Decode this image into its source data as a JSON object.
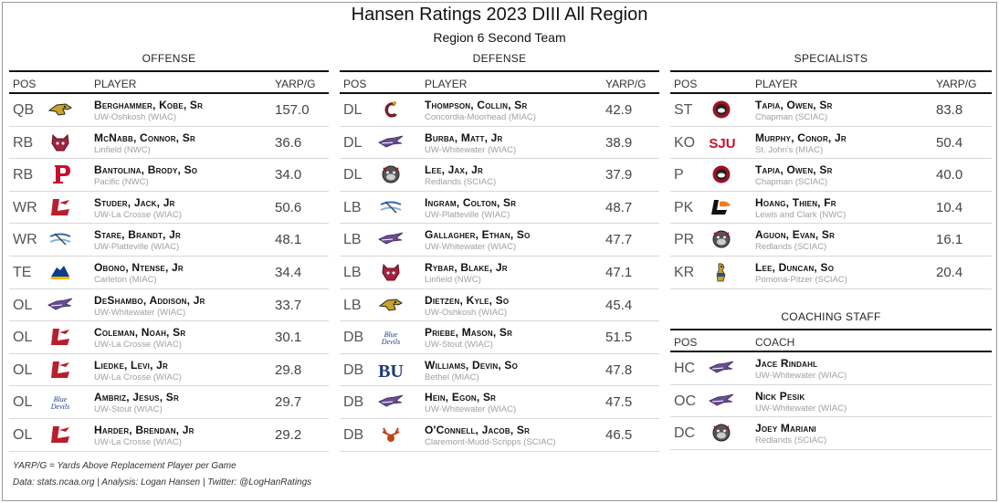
{
  "header": {
    "title": "Hansen Ratings 2023 DIII All Region",
    "subtitle": "Region 6 Second Team"
  },
  "columns": {
    "pos": "POS",
    "player": "PLAYER",
    "stat": "YARP/G",
    "coach": "COACH"
  },
  "offense": {
    "title": "OFFENSE",
    "rows": [
      {
        "pos": "QB",
        "name": "Berghammer, Kobe, Sr",
        "team": "UW-Oshkosh (WIAC)",
        "value": "157.0",
        "logo": "titan-icon"
      },
      {
        "pos": "RB",
        "name": "McNabb, Connor, Sr",
        "team": "Linfield (NWC)",
        "value": "36.6",
        "logo": "wildcat-icon"
      },
      {
        "pos": "RB",
        "name": "Bantolina, Brody, So",
        "team": "Pacific (NWC)",
        "value": "34.0",
        "logo": "p-letter-icon"
      },
      {
        "pos": "WR",
        "name": "Studer, Jack, Jr",
        "team": "UW-La Crosse (WIAC)",
        "value": "50.6",
        "logo": "eagle-l-icon"
      },
      {
        "pos": "WR",
        "name": "Stare, Brandt, Jr",
        "team": "UW-Platteville (WIAC)",
        "value": "48.1",
        "logo": "pioneer-pick-icon"
      },
      {
        "pos": "TE",
        "name": "Obono, Ntense, Jr",
        "team": "Carleton (MIAC)",
        "value": "34.4",
        "logo": "knight-icon"
      },
      {
        "pos": "OL",
        "name": "DeShambo, Addison, Jr",
        "team": "UW-Whitewater (WIAC)",
        "value": "33.7",
        "logo": "warhawk-icon"
      },
      {
        "pos": "OL",
        "name": "Coleman, Noah, Sr",
        "team": "UW-La Crosse (WIAC)",
        "value": "30.1",
        "logo": "eagle-l-icon"
      },
      {
        "pos": "OL",
        "name": "Liedke, Levi, Jr",
        "team": "UW-La Crosse (WIAC)",
        "value": "29.8",
        "logo": "eagle-l-icon"
      },
      {
        "pos": "OL",
        "name": "Ambriz, Jesus, Sr",
        "team": "UW-Stout (WIAC)",
        "value": "29.7",
        "logo": "blue-devil-icon"
      },
      {
        "pos": "OL",
        "name": "Harder, Brendan, Jr",
        "team": "UW-La Crosse (WIAC)",
        "value": "29.2",
        "logo": "eagle-l-icon"
      }
    ]
  },
  "defense": {
    "title": "DEFENSE",
    "rows": [
      {
        "pos": "DL",
        "name": "Thompson, Collin, Sr",
        "team": "Concordia-Moorhead (MIAC)",
        "value": "42.9",
        "logo": "cobber-c-icon"
      },
      {
        "pos": "DL",
        "name": "Burba, Matt, Jr",
        "team": "UW-Whitewater (WIAC)",
        "value": "38.9",
        "logo": "warhawk-icon"
      },
      {
        "pos": "DL",
        "name": "Lee, Jax, Jr",
        "team": "Redlands (SCIAC)",
        "value": "37.9",
        "logo": "bulldog-icon"
      },
      {
        "pos": "LB",
        "name": "Ingram, Colton, Sr",
        "team": "UW-Platteville (WIAC)",
        "value": "48.7",
        "logo": "pioneer-pick-icon"
      },
      {
        "pos": "LB",
        "name": "Gallagher, Ethan, So",
        "team": "UW-Whitewater (WIAC)",
        "value": "47.7",
        "logo": "warhawk-icon"
      },
      {
        "pos": "LB",
        "name": "Rybar, Blake, Jr",
        "team": "Linfield (NWC)",
        "value": "47.1",
        "logo": "wildcat-icon"
      },
      {
        "pos": "LB",
        "name": "Dietzen, Kyle, So",
        "team": "UW-Oshkosh (WIAC)",
        "value": "45.4",
        "logo": "titan-icon"
      },
      {
        "pos": "DB",
        "name": "Priebe, Mason, Sr",
        "team": "UW-Stout (WIAC)",
        "value": "51.5",
        "logo": "blue-devil-icon"
      },
      {
        "pos": "DB",
        "name": "Williams, Devin, So",
        "team": "Bethel (MIAC)",
        "value": "47.8",
        "logo": "bu-letters-icon"
      },
      {
        "pos": "DB",
        "name": "Hein, Egon, Sr",
        "team": "UW-Whitewater (WIAC)",
        "value": "47.5",
        "logo": "warhawk-icon"
      },
      {
        "pos": "DB",
        "name": "O'Connell, Jacob, Sr",
        "team": "Claremont-Mudd-Scripps (SCIAC)",
        "value": "46.5",
        "logo": "stag-icon"
      }
    ]
  },
  "specialists": {
    "title": "SPECIALISTS",
    "rows": [
      {
        "pos": "ST",
        "name": "Tapia, Owen, Sr",
        "team": "Chapman (SCIAC)",
        "value": "83.8",
        "logo": "panther-icon"
      },
      {
        "pos": "KO",
        "name": "Murphy, Conor, Jr",
        "team": "St. John's (MIAC)",
        "value": "50.4",
        "logo": "sju-letters-icon"
      },
      {
        "pos": "P",
        "name": "Tapia, Owen, Sr",
        "team": "Chapman (SCIAC)",
        "value": "40.0",
        "logo": "panther-icon"
      },
      {
        "pos": "PK",
        "name": "Hoang, Thien, Fr",
        "team": "Lewis and Clark (NWC)",
        "value": "10.4",
        "logo": "lc-pioneer-icon"
      },
      {
        "pos": "PR",
        "name": "Aguon, Evan, Sr",
        "team": "Redlands (SCIAC)",
        "value": "16.1",
        "logo": "bulldog-icon"
      },
      {
        "pos": "KR",
        "name": "Lee, Duncan, So",
        "team": "Pomona-Pitzer (SCIAC)",
        "value": "20.4",
        "logo": "sagehen-icon"
      }
    ]
  },
  "coaching": {
    "title": "COACHING STAFF",
    "rows": [
      {
        "pos": "HC",
        "name": "Jace Rindahl",
        "team": "UW-Whitewater (WIAC)",
        "logo": "warhawk-icon"
      },
      {
        "pos": "OC",
        "name": "Nick Pesik",
        "team": "UW-Whitewater (WIAC)",
        "logo": "warhawk-icon"
      },
      {
        "pos": "DC",
        "name": "Joey Mariani",
        "team": "Redlands (SCIAC)",
        "logo": "bulldog-icon"
      }
    ]
  },
  "footer": {
    "legend": "YARP/G = Yards Above Replacement Player per Game",
    "source": "Data: stats.ncaa.org | Analysis: Logan Hansen | Twitter: @LogHanRatings"
  }
}
